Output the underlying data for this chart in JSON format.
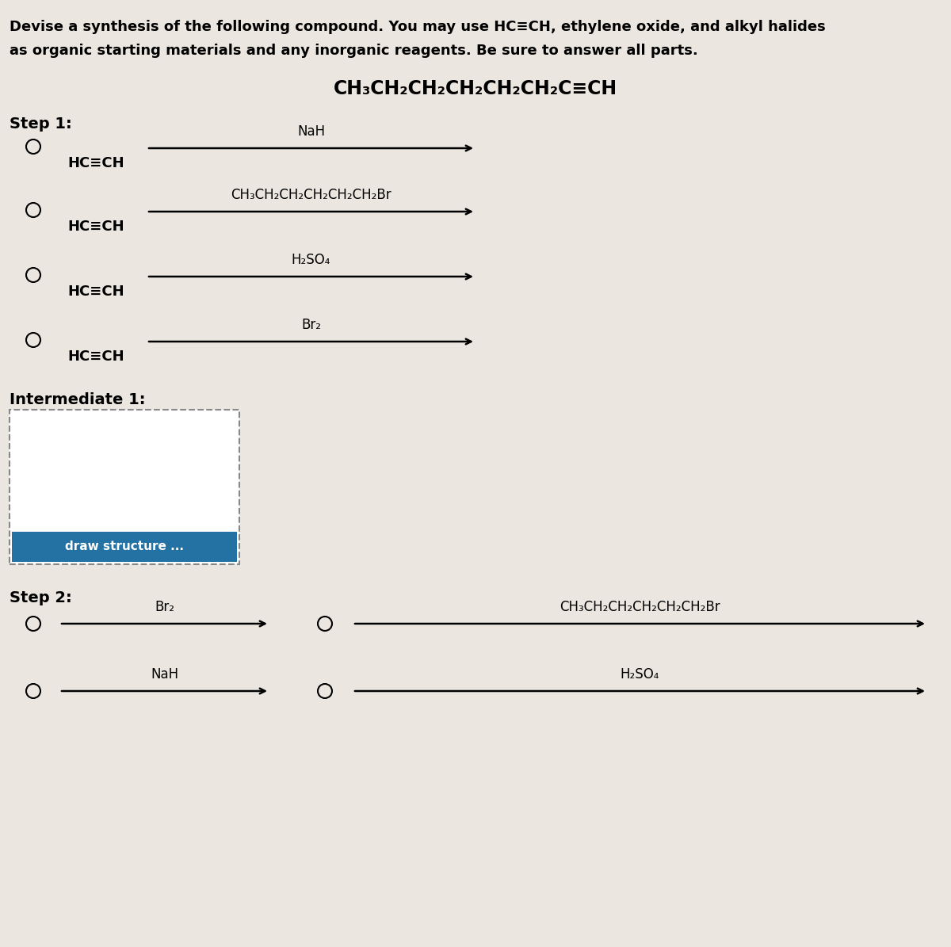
{
  "bg_color": "#d9d2c5",
  "content_bg": "#e8e4dc",
  "white_bg": "#f0eeea",
  "title_line1": "Devise a synthesis of the following compound. You may use HC≡CH, ethylene oxide, and alkyl halides",
  "title_line2": "as organic starting materials and any inorganic reagents. Be sure to answer all parts.",
  "target_compound": "CH₃CH₂CH₂CH₂CH₂CH₂C≡CH",
  "step1_label": "Step 1:",
  "step1_options": [
    {
      "reactant": "HC≡CH",
      "reagent": "NaH"
    },
    {
      "reactant": "HC≡CH",
      "reagent": "CH₃CH₂CH₂CH₂CH₂CH₂Br"
    },
    {
      "reactant": "HC≡CH",
      "reagent": "H₂SO₄"
    },
    {
      "reactant": "HC≡CH",
      "reagent": "Br₂"
    }
  ],
  "intermediate_label": "Intermediate 1:",
  "draw_structure_text": "draw structure ...",
  "step2_label": "Step 2:",
  "step2_col0": [
    {
      "reagent": "Br₂"
    },
    {
      "reagent": "NaH"
    }
  ],
  "step2_col1": [
    {
      "reagent": "CH₃CH₂CH₂CH₂CH₂CH₂Br"
    },
    {
      "reagent": "H₂SO₄"
    }
  ],
  "btn_color": "#2471a3"
}
